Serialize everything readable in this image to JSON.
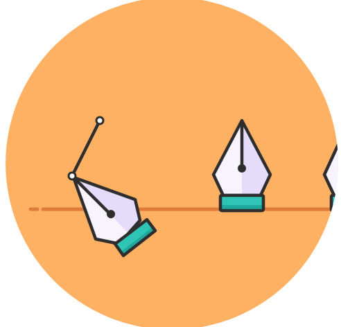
{
  "illustration": {
    "background": "#FFFFFF",
    "circle_fill": "#FFB163",
    "guide_line_color": "#E07A3A",
    "outline_color": "#2E2E2E",
    "nib_fill_light": "#F7F4FD",
    "nib_fill_shade": "#E5DBFB",
    "grip_fill": "#2EC5B6",
    "grip_fill_dark": "#1FA99C",
    "anchor_point_fill": "#FFFFFF",
    "icons": [
      "circle-background",
      "baseline-guide",
      "tilted-pen-nib-icon",
      "bezier-handle-icon",
      "upright-pen-nib-icon",
      "partial-pen-nib-icon"
    ]
  }
}
